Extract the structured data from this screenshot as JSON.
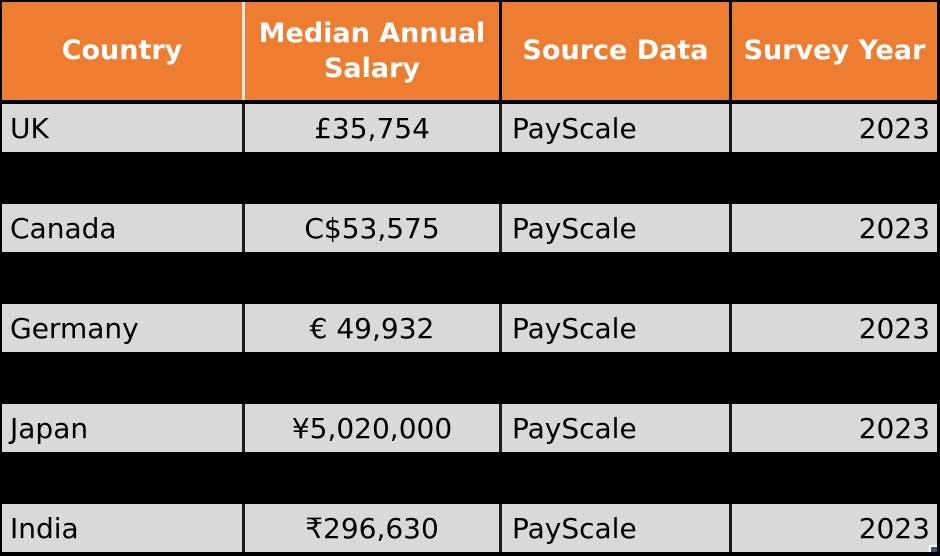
{
  "app": {
    "type": "spreadsheet-table-screenshot"
  },
  "colors": {
    "header_bg": "#ED7D31",
    "header_text": "#FFFFFF",
    "row_bg": "#D9D9D9",
    "row_text": "#000000",
    "grid_bg": "#000000",
    "header_divider_light": "#E8E8E8",
    "cell_divider_dark": "#1A1A1A",
    "fill_handle": "#35508C"
  },
  "table": {
    "columns": [
      {
        "id": "country",
        "label": "Country"
      },
      {
        "id": "salary",
        "label": "Median Annual Salary"
      },
      {
        "id": "source",
        "label": "Source Data"
      },
      {
        "id": "year",
        "label": "Survey Year"
      }
    ],
    "rows": [
      {
        "country": "UK",
        "salary": "£35,754",
        "source": "PayScale",
        "year": "2023"
      },
      {
        "country": "Canada",
        "salary": "C$53,575",
        "source": "PayScale",
        "year": "2023"
      },
      {
        "country": "Germany",
        "salary": "€ 49,932",
        "source": "PayScale",
        "year": "2023"
      },
      {
        "country": "Japan",
        "salary": "¥5,020,000",
        "source": "PayScale",
        "year": "2023"
      },
      {
        "country": "India",
        "salary": "₹296,630",
        "source": "PayScale",
        "year": "2023"
      }
    ]
  }
}
